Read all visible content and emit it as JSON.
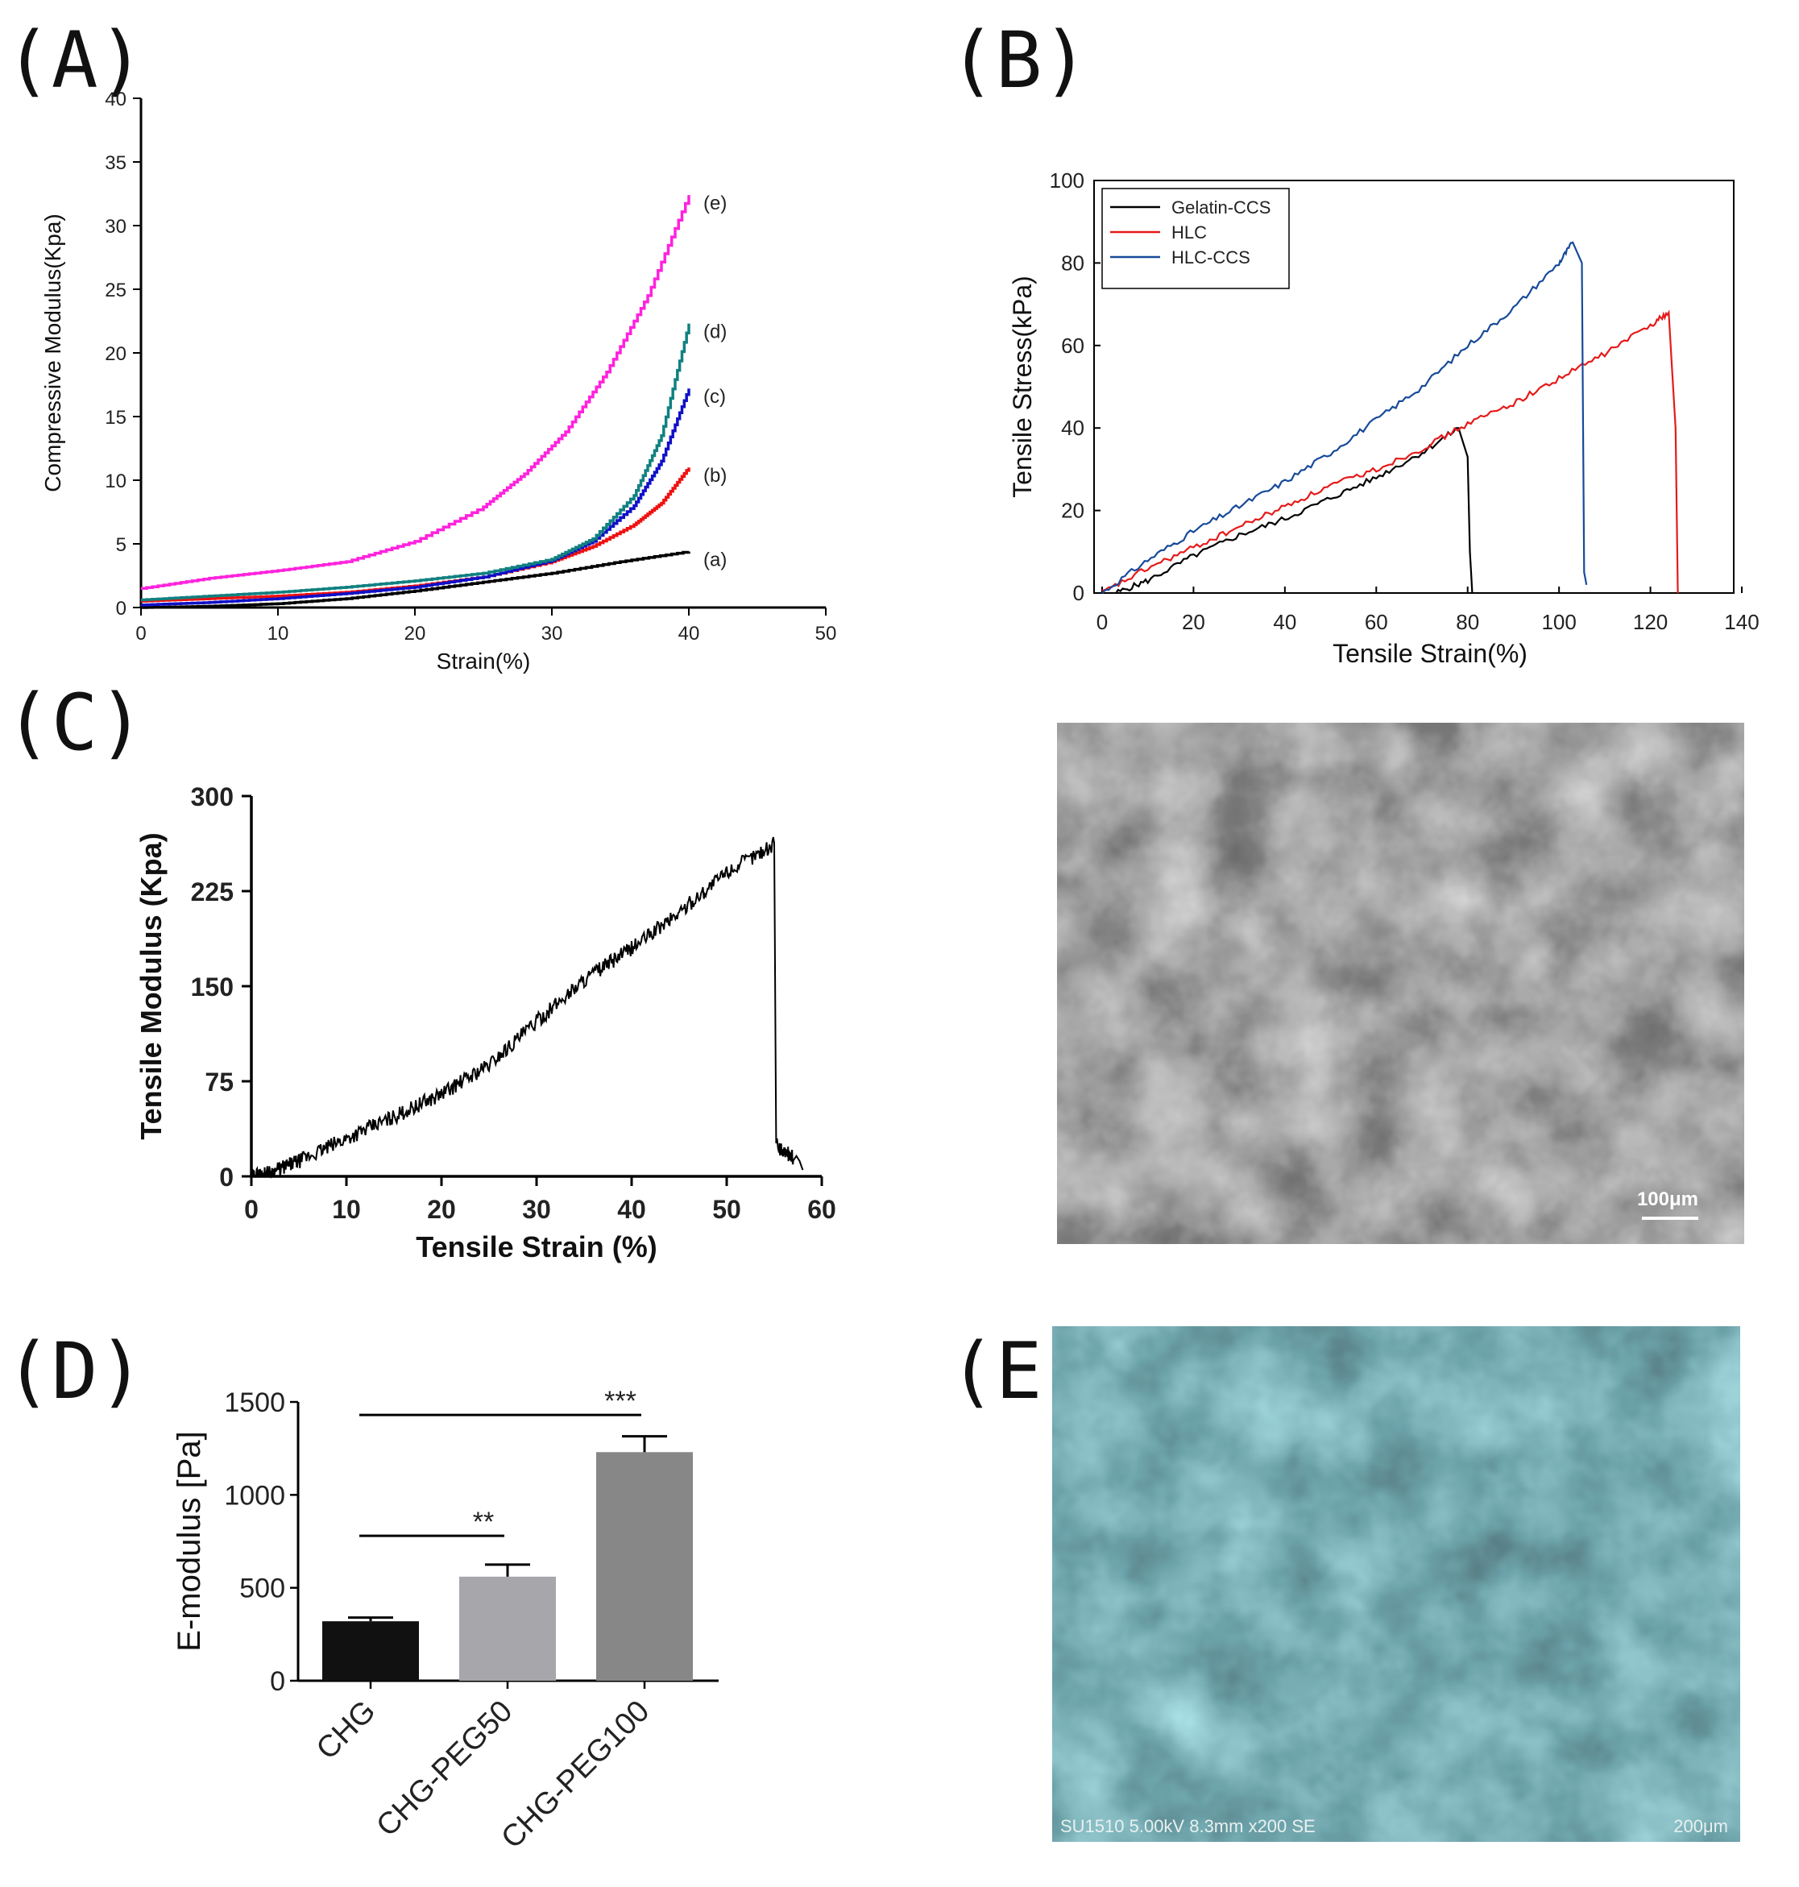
{
  "panels": {
    "A": "(A)",
    "B": "(B)",
    "C": "(C)",
    "D": "(D)",
    "E": "(E)"
  },
  "colors": {
    "a": "#000000",
    "b": "#ee1111",
    "c": "#1010c8",
    "d": "#118080",
    "e": "#ff22dd",
    "gelatin": "#000000",
    "hlc": "#e51a1a",
    "hlcccs": "#174a9a",
    "bar1": "#111111",
    "bar2": "#a6a6ab",
    "bar3": "#878787"
  },
  "chart_data": [
    {
      "id": "A",
      "type": "line",
      "title": "",
      "xlabel": "Strain(%)",
      "ylabel": "Compressive Modulus(Kpa)",
      "xlim": [
        0,
        50
      ],
      "ylim": [
        0,
        40
      ],
      "xticks": [
        "0",
        "10",
        "20",
        "30",
        "40",
        "50"
      ],
      "yticks": [
        "0",
        "5",
        "10",
        "15",
        "20",
        "25",
        "30",
        "35",
        "40"
      ],
      "series": [
        {
          "name": "(a)",
          "x": [
            0,
            5,
            10,
            15,
            20,
            25,
            30,
            35,
            40
          ],
          "y": [
            0,
            0.1,
            0.3,
            0.7,
            1.3,
            2.0,
            2.7,
            3.6,
            4.4
          ]
        },
        {
          "name": "(b)",
          "x": [
            0,
            5,
            10,
            15,
            20,
            25,
            30,
            33,
            36,
            38,
            40
          ],
          "y": [
            0.5,
            0.7,
            0.9,
            1.2,
            1.7,
            2.4,
            3.6,
            4.8,
            6.5,
            8.2,
            11.0
          ]
        },
        {
          "name": "(c)",
          "x": [
            0,
            5,
            10,
            15,
            20,
            25,
            30,
            33,
            36,
            38,
            40
          ],
          "y": [
            0.2,
            0.4,
            0.7,
            1.1,
            1.6,
            2.4,
            3.7,
            5.2,
            8.0,
            11.5,
            17.2
          ]
        },
        {
          "name": "(d)",
          "x": [
            0,
            5,
            10,
            15,
            20,
            25,
            30,
            33,
            36,
            38,
            40
          ],
          "y": [
            0.6,
            0.9,
            1.2,
            1.6,
            2.1,
            2.7,
            3.8,
            5.4,
            8.8,
            13.5,
            22.3
          ]
        },
        {
          "name": "(e)",
          "x": [
            0,
            5,
            10,
            15,
            20,
            25,
            28,
            31,
            34,
            37,
            40
          ],
          "y": [
            1.5,
            2.3,
            2.9,
            3.6,
            5.2,
            7.9,
            10.5,
            13.8,
            18.5,
            24.5,
            32.4
          ]
        }
      ]
    },
    {
      "id": "B",
      "type": "line",
      "title": "",
      "xlabel": "Tensile Strain(%)",
      "ylabel": "Tensile Stress(kPa)",
      "xlim": [
        0,
        140
      ],
      "ylim": [
        0,
        100
      ],
      "xticks": [
        "0",
        "20",
        "40",
        "60",
        "80",
        "100",
        "120",
        "140"
      ],
      "yticks": [
        "0",
        "20",
        "40",
        "60",
        "80",
        "100"
      ],
      "legend": "top-left",
      "series": [
        {
          "name": "Gelatin-CCS",
          "x": [
            3,
            10,
            20,
            30,
            40,
            50,
            60,
            70,
            78,
            80,
            80.5,
            81
          ],
          "y": [
            0,
            3,
            9,
            14,
            18,
            23,
            28,
            34,
            40,
            33,
            10,
            0
          ]
        },
        {
          "name": "HLC",
          "x": [
            0,
            10,
            20,
            30,
            40,
            50,
            60,
            70,
            80,
            90,
            100,
            110,
            120,
            124,
            125.5,
            126
          ],
          "y": [
            0,
            6,
            11,
            16,
            21,
            26,
            30,
            35,
            41,
            46,
            52,
            58,
            65,
            68,
            40,
            0
          ]
        },
        {
          "name": "HLC-CCS",
          "x": [
            0,
            10,
            20,
            30,
            40,
            50,
            60,
            70,
            80,
            90,
            100,
            103,
            105,
            105.5,
            106
          ],
          "y": [
            0,
            8,
            15,
            21,
            27,
            34,
            42,
            50,
            60,
            69,
            80,
            85,
            80,
            5,
            2
          ]
        }
      ]
    },
    {
      "id": "C",
      "type": "line",
      "title": "",
      "xlabel": "Tensile Strain (%)",
      "ylabel": "Tensile Modulus (Kpa)",
      "xlim": [
        0,
        60
      ],
      "ylim": [
        0,
        300
      ],
      "xticks": [
        "0",
        "10",
        "20",
        "30",
        "40",
        "50",
        "60"
      ],
      "yticks": [
        "0",
        "75",
        "150",
        "225",
        "300"
      ],
      "series": [
        {
          "name": "C",
          "x": [
            0,
            2,
            5,
            10,
            15,
            20,
            25,
            30,
            35,
            40,
            45,
            50,
            55,
            55.2,
            55.5,
            57,
            58
          ],
          "y": [
            0,
            3,
            12,
            30,
            47,
            65,
            88,
            122,
            155,
            180,
            208,
            240,
            262,
            30,
            22,
            15,
            5
          ]
        }
      ]
    },
    {
      "id": "D",
      "type": "bar",
      "title": "",
      "xlabel": "",
      "ylabel": "E-modulus [Pa]",
      "ylim": [
        0,
        1500
      ],
      "yticks": [
        "0",
        "500",
        "1000",
        "1500"
      ],
      "categories": [
        "CHG",
        "CHG-PEG50",
        "CHG-PEG100"
      ],
      "values": [
        320,
        560,
        1230
      ],
      "errors": [
        20,
        65,
        85
      ],
      "significance": [
        {
          "from": "CHG",
          "to": "CHG-PEG50",
          "label": "**"
        },
        {
          "from": "CHG",
          "to": "CHG-PEG100",
          "label": "***"
        }
      ]
    }
  ],
  "micrographs": {
    "c_scale": "100μm",
    "e_caption": "SU1510 5.00kV 8.3mm x200 SE",
    "e_scale": "200μm"
  }
}
